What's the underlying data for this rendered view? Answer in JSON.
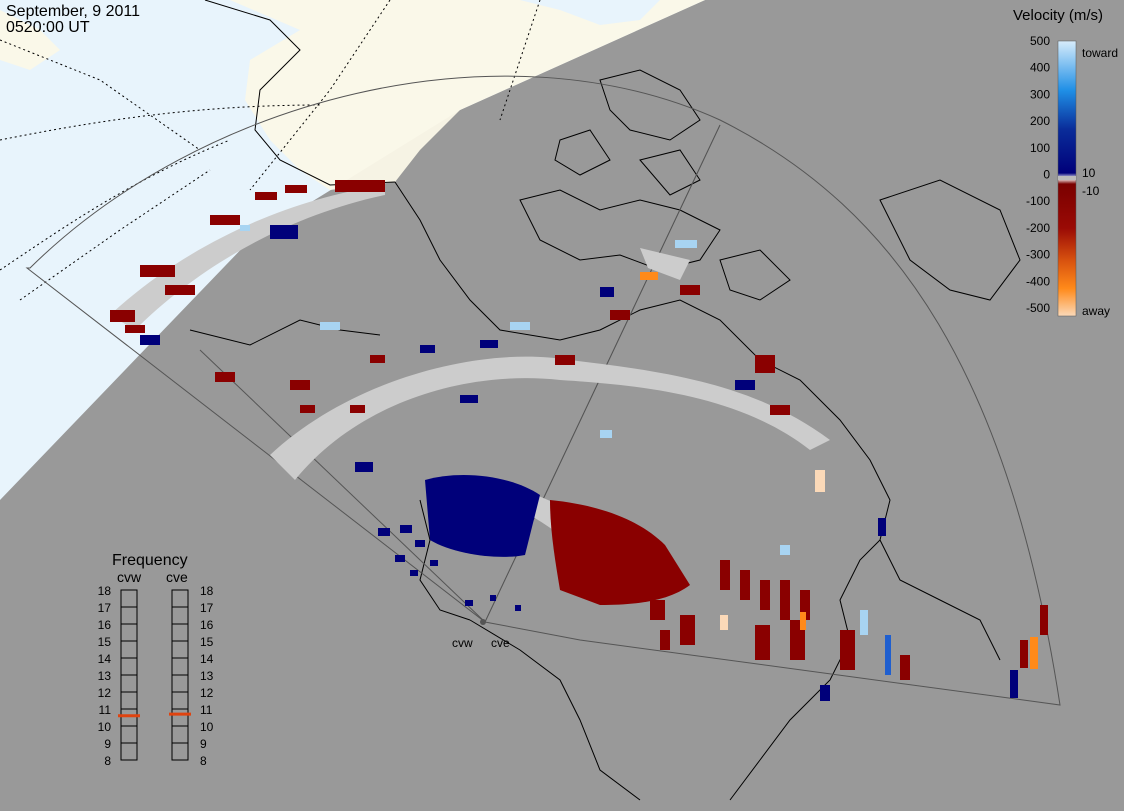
{
  "header": {
    "date": "September, 9 2011",
    "time": "0520:00 UT"
  },
  "radars": {
    "west": "cvw",
    "east": "cve"
  },
  "velocity_scale": {
    "title": "Velocity (m/s)",
    "toward_label": "toward",
    "away_label": "away",
    "ticks": [
      "500",
      "400",
      "300",
      "200",
      "100",
      "0",
      "-100",
      "-200",
      "-300",
      "-400",
      "-500"
    ],
    "threshold_pos": "10",
    "threshold_neg": "-10",
    "colors": {
      "toward_500": "#d7ecfb",
      "toward_300": "#1f8fe6",
      "toward_100": "#0a2d9a",
      "toward_10": "#00007a",
      "away_10": "#7a0000",
      "away_150": "#9a0a05",
      "away_250": "#d9530f",
      "away_400": "#ff8a1a",
      "away_500": "#fbd9b8",
      "ground_scatter": "#cccccc"
    }
  },
  "frequency_panel": {
    "title": "Frequency",
    "cvw_label": "cvw",
    "cve_label": "cve",
    "ticks": [
      "18",
      "17",
      "16",
      "15",
      "14",
      "13",
      "12",
      "11",
      "10",
      "9",
      "8"
    ],
    "cvw_mhz": 10.6,
    "cve_mhz": 10.7,
    "marker_color": "#e0430f"
  }
}
